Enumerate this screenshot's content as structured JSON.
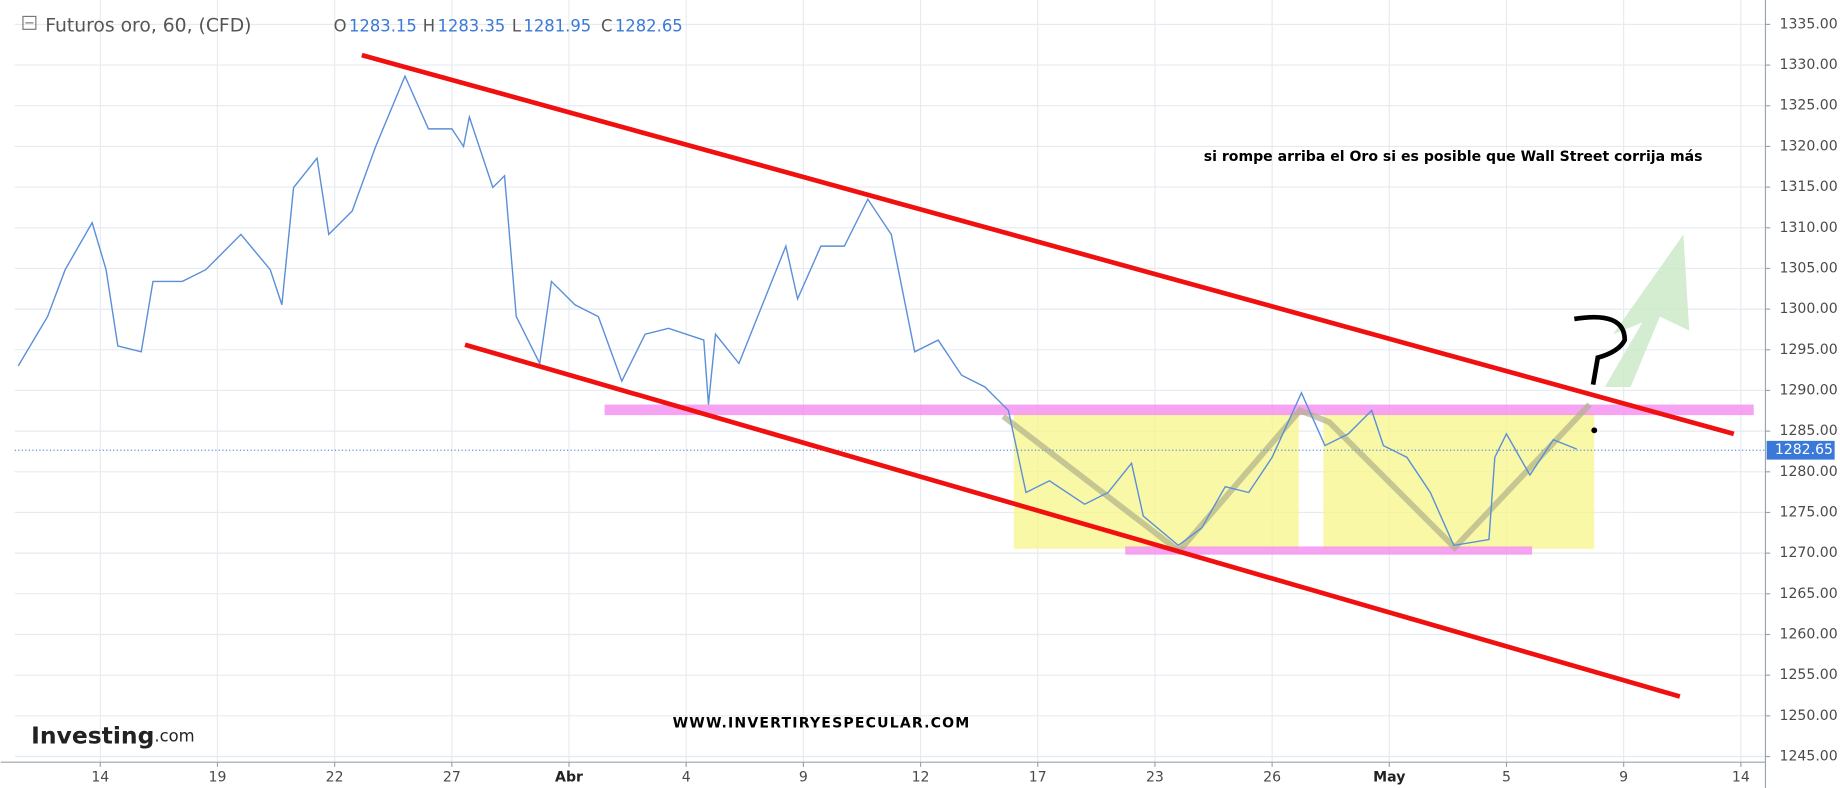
{
  "chart_data": {
    "type": "line",
    "title": "Futuros oro, 60, (CFD)",
    "ohlc": [
      {
        "label": "O",
        "value": 1283.15
      },
      {
        "label": "H",
        "value": 1283.35
      },
      {
        "label": "L",
        "value": 1281.95
      },
      {
        "label": "C",
        "value": 1282.65
      }
    ],
    "annotation": "si rompe arriba el Oro si es posible que Wall Street corrija más",
    "watermark": "WWW.INVERTIRYESPECULAR.COM",
    "logo": {
      "brand": "Investing",
      "suffix": ".com"
    },
    "last_price": 1282.65,
    "color": "#5b8fd9",
    "grid": true,
    "x": [
      -2.1,
      -1.35,
      -0.9,
      -0.21,
      0.15,
      0.45,
      1.05,
      1.35,
      2.1,
      2.7,
      3.6,
      4.35,
      4.65,
      4.95,
      5.55,
      5.85,
      6.45,
      7.05,
      7.8,
      8.4,
      9.0,
      9.3,
      9.45,
      10.05,
      10.35,
      10.65,
      11.25,
      11.55,
      12.15,
      12.75,
      13.35,
      13.95,
      14.55,
      15.45,
      15.57,
      15.75,
      16.35,
      16.95,
      17.55,
      17.85,
      18.45,
      19.05,
      19.65,
      20.25,
      20.85,
      21.45,
      22.05,
      22.65,
      23.25,
      23.7,
      24.3,
      25.2,
      25.8,
      26.4,
      26.7,
      27.6,
      28.2,
      28.8,
      29.4,
      30.0,
      30.75,
      31.35,
      31.95,
      32.55,
      32.85,
      33.45,
      34.05,
      34.65,
      35.55,
      35.7,
      36.0,
      36.6,
      37.2,
      37.8
    ],
    "values": [
      1293.03,
      1299.08,
      1304.85,
      1310.62,
      1304.85,
      1295.48,
      1294.76,
      1303.41,
      1303.41,
      1304.85,
      1309.18,
      1304.85,
      1300.53,
      1314.95,
      1318.56,
      1309.18,
      1312.07,
      1320.0,
      1328.65,
      1322.16,
      1322.16,
      1320.0,
      1323.61,
      1314.95,
      1316.39,
      1299.08,
      1293.32,
      1303.41,
      1300.53,
      1299.08,
      1291.15,
      1296.92,
      1297.64,
      1296.2,
      1288.27,
      1296.92,
      1293.32,
      1300.53,
      1307.74,
      1301.25,
      1307.74,
      1307.74,
      1313.51,
      1309.18,
      1294.76,
      1296.2,
      1291.87,
      1290.43,
      1287.55,
      1277.45,
      1278.89,
      1276.01,
      1277.45,
      1281.06,
      1274.56,
      1270.96,
      1273.12,
      1278.17,
      1277.45,
      1281.78,
      1289.71,
      1283.22,
      1284.66,
      1287.55,
      1283.22,
      1281.78,
      1277.45,
      1270.96,
      1271.68,
      1281.78,
      1284.66,
      1279.61,
      1283.94,
      1282.79
    ],
    "xlim": [
      -2.19,
      42.63
    ],
    "xticks": [
      {
        "value": 0,
        "label": "14"
      },
      {
        "value": 3,
        "label": "19"
      },
      {
        "value": 6,
        "label": "22"
      },
      {
        "value": 9,
        "label": "27"
      },
      {
        "value": 12,
        "label": "Abr"
      },
      {
        "value": 15,
        "label": "4"
      },
      {
        "value": 18,
        "label": "9"
      },
      {
        "value": 21,
        "label": "12"
      },
      {
        "value": 24,
        "label": "17"
      },
      {
        "value": 27,
        "label": "23"
      },
      {
        "value": 30,
        "label": "26"
      },
      {
        "value": 33,
        "label": "May"
      },
      {
        "value": 36,
        "label": "5"
      },
      {
        "value": 39,
        "label": "9"
      },
      {
        "value": 42,
        "label": "14"
      }
    ],
    "ylim": [
      1244.3,
      1338.0
    ],
    "yticks": [
      {
        "value": 1245,
        "label": "1245.00"
      },
      {
        "value": 1250,
        "label": "1250.00"
      },
      {
        "value": 1255,
        "label": "1255.00"
      },
      {
        "value": 1260,
        "label": "1260.00"
      },
      {
        "value": 1265,
        "label": "1265.00"
      },
      {
        "value": 1270,
        "label": "1270.00"
      },
      {
        "value": 1275,
        "label": "1275.00"
      },
      {
        "value": 1280,
        "label": "1280.00"
      },
      {
        "value": 1285,
        "label": "1285.00"
      },
      {
        "value": 1290,
        "label": "1290.00"
      },
      {
        "value": 1295,
        "label": "1295.00"
      },
      {
        "value": 1300,
        "label": "1300.00"
      },
      {
        "value": 1305,
        "label": "1305.00"
      },
      {
        "value": 1310,
        "label": "1310.00"
      },
      {
        "value": 1315,
        "label": "1315.00"
      },
      {
        "value": 1320,
        "label": "1320.00"
      },
      {
        "value": 1325,
        "label": "1325.00"
      },
      {
        "value": 1330,
        "label": "1330.00"
      },
      {
        "value": 1335,
        "label": "1335.00"
      }
    ]
  }
}
